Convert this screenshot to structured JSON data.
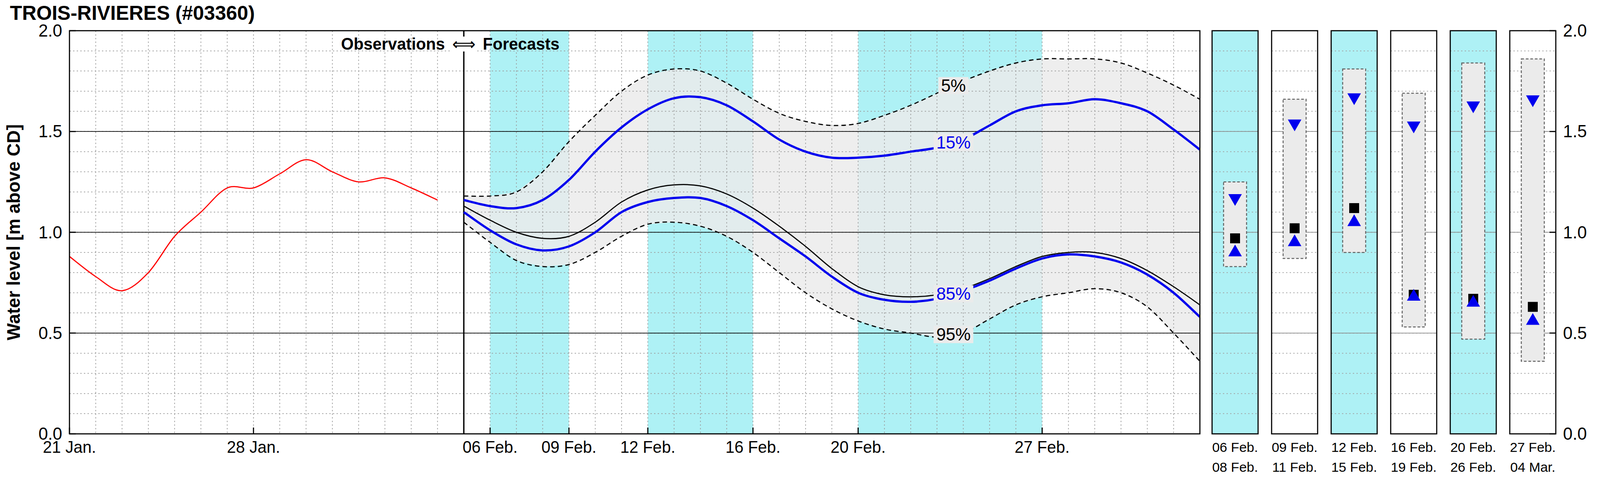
{
  "chart_data": [
    {
      "type": "line",
      "title": "TROIS-RIVIERES (#03360)",
      "y_label": "Water level [m above CD]",
      "annotations": [
        "Observations",
        "⟺",
        "Forecasts"
      ],
      "forecast_start": 15,
      "shaded_periods": [
        [
          16,
          19
        ],
        [
          22,
          26
        ],
        [
          30,
          37
        ]
      ],
      "xlim": [
        0,
        43
      ],
      "xticks": [
        {
          "value": 0,
          "label": "21 Jan."
        },
        {
          "value": 7,
          "label": "28 Jan."
        },
        {
          "value": 16,
          "label": "06 Feb."
        },
        {
          "value": 19,
          "label": "09 Feb."
        },
        {
          "value": 22,
          "label": "12 Feb."
        },
        {
          "value": 26,
          "label": "16 Feb."
        },
        {
          "value": 30,
          "label": "20 Feb."
        },
        {
          "value": 37,
          "label": "27 Feb."
        }
      ],
      "xminor": [
        0,
        1,
        2,
        3,
        4,
        5,
        6,
        7,
        8,
        9,
        10,
        11,
        12,
        13,
        14,
        15,
        16,
        17,
        18,
        19,
        20,
        21,
        22,
        23,
        24,
        25,
        26,
        27,
        28,
        29,
        30,
        31,
        32,
        33,
        34,
        35,
        36,
        37,
        38,
        39,
        40,
        41,
        42,
        43
      ],
      "ylim": [
        0,
        2
      ],
      "yticks": [
        {
          "value": 0,
          "label": "0.0"
        },
        {
          "value": 0.5,
          "label": "0.5"
        },
        {
          "value": 1,
          "label": "1.0"
        },
        {
          "value": 1.5,
          "label": "1.5"
        },
        {
          "value": 2,
          "label": "2.0"
        }
      ],
      "yminor": [
        0,
        0.1,
        0.2,
        0.3,
        0.4,
        0.5,
        0.6,
        0.7,
        0.8,
        0.9,
        1,
        1.1,
        1.2,
        1.3,
        1.4,
        1.5,
        1.6,
        1.7,
        1.8,
        1.9,
        2
      ],
      "grid": true,
      "series": [
        {
          "color": "#ff0000",
          "line_style": "solid",
          "x": [
            0,
            1,
            2,
            3,
            4,
            5,
            6,
            7,
            8,
            9,
            10,
            11,
            12,
            13,
            14
          ],
          "values": [
            0.88,
            0.78,
            0.71,
            0.8,
            0.98,
            1.1,
            1.22,
            1.22,
            1.29,
            1.36,
            1.3,
            1.25,
            1.27,
            1.22,
            1.16
          ]
        },
        {
          "name": "5%",
          "color": "#000000",
          "line_style": "dashed",
          "x": [
            15,
            16,
            17,
            18,
            19,
            20,
            21,
            22,
            23,
            24,
            25,
            26,
            27,
            28,
            29,
            30,
            31,
            32,
            33,
            34,
            35,
            36,
            37,
            38,
            39,
            40,
            41,
            42,
            43
          ],
          "values": [
            1.18,
            1.18,
            1.2,
            1.3,
            1.45,
            1.58,
            1.7,
            1.78,
            1.81,
            1.8,
            1.74,
            1.66,
            1.59,
            1.55,
            1.53,
            1.54,
            1.58,
            1.63,
            1.69,
            1.75,
            1.8,
            1.84,
            1.86,
            1.86,
            1.86,
            1.84,
            1.79,
            1.73,
            1.66
          ]
        },
        {
          "name": "15%",
          "color": "#0000ee",
          "line_style": "solid",
          "x": [
            15,
            16,
            17,
            18,
            19,
            20,
            21,
            22,
            23,
            24,
            25,
            26,
            27,
            28,
            29,
            30,
            31,
            32,
            33,
            34,
            35,
            36,
            37,
            38,
            39,
            40,
            41,
            42,
            43
          ],
          "values": [
            1.16,
            1.13,
            1.12,
            1.16,
            1.26,
            1.4,
            1.52,
            1.61,
            1.665,
            1.67,
            1.63,
            1.55,
            1.46,
            1.4,
            1.37,
            1.37,
            1.38,
            1.4,
            1.42,
            1.46,
            1.53,
            1.6,
            1.63,
            1.64,
            1.66,
            1.64,
            1.6,
            1.51,
            1.41
          ]
        },
        {
          "color": "#000000",
          "line_style": "solid",
          "x": [
            15,
            16,
            17,
            18,
            19,
            20,
            21,
            22,
            23,
            24,
            25,
            26,
            27,
            28,
            29,
            30,
            31,
            32,
            33,
            34,
            35,
            36,
            37,
            38,
            39,
            40,
            41,
            42,
            43
          ],
          "values": [
            1.13,
            1.06,
            1.0,
            0.97,
            0.98,
            1.05,
            1.15,
            1.21,
            1.235,
            1.23,
            1.19,
            1.12,
            1.03,
            0.93,
            0.82,
            0.73,
            0.69,
            0.68,
            0.69,
            0.72,
            0.77,
            0.83,
            0.88,
            0.9,
            0.9,
            0.87,
            0.81,
            0.73,
            0.64
          ]
        },
        {
          "name": "85%",
          "color": "#0000ee",
          "line_style": "solid",
          "x": [
            15,
            16,
            17,
            18,
            19,
            20,
            21,
            22,
            23,
            24,
            25,
            26,
            27,
            28,
            29,
            30,
            31,
            32,
            33,
            34,
            35,
            36,
            37,
            38,
            39,
            40,
            41,
            42,
            43
          ],
          "values": [
            1.1,
            1.01,
            0.94,
            0.91,
            0.93,
            1.0,
            1.1,
            1.15,
            1.17,
            1.17,
            1.13,
            1.06,
            0.97,
            0.88,
            0.78,
            0.7,
            0.665,
            0.655,
            0.67,
            0.71,
            0.76,
            0.82,
            0.87,
            0.89,
            0.88,
            0.85,
            0.79,
            0.7,
            0.58
          ]
        },
        {
          "name": "95%",
          "color": "#000000",
          "line_style": "dashed",
          "x": [
            15,
            16,
            17,
            18,
            19,
            20,
            21,
            22,
            23,
            24,
            25,
            26,
            27,
            28,
            29,
            30,
            31,
            32,
            33,
            34,
            35,
            36,
            37,
            38,
            39,
            40,
            41,
            42,
            43
          ],
          "values": [
            1.05,
            0.95,
            0.86,
            0.83,
            0.84,
            0.9,
            0.98,
            1.04,
            1.05,
            1.03,
            0.98,
            0.9,
            0.8,
            0.7,
            0.62,
            0.56,
            0.52,
            0.5,
            0.48,
            0.5,
            0.57,
            0.64,
            0.68,
            0.7,
            0.72,
            0.7,
            0.63,
            0.5,
            0.36
          ]
        }
      ]
    },
    {
      "type": "range",
      "categories": [
        "06 Feb.",
        "09 Feb.",
        "12 Feb.",
        "16 Feb.",
        "20 Feb.",
        "27 Feb."
      ],
      "categories_end": [
        "08 Feb.",
        "11 Feb.",
        "15 Feb.",
        "19 Feb.",
        "26 Feb.",
        "04 Mar."
      ],
      "highlighted": [
        true,
        false,
        true,
        false,
        true,
        false
      ],
      "ylim": [
        0,
        2
      ],
      "yticks": [
        {
          "value": 0,
          "label": "0.0"
        },
        {
          "value": 0.5,
          "label": "0.5"
        },
        {
          "value": 1,
          "label": "1.0"
        },
        {
          "value": 1.5,
          "label": "1.5"
        },
        {
          "value": 2,
          "label": "2.0"
        }
      ],
      "yminor": [
        0,
        0.1,
        0.2,
        0.3,
        0.4,
        0.5,
        0.6,
        0.7,
        0.8,
        0.9,
        1,
        1.1,
        1.2,
        1.3,
        1.4,
        1.5,
        1.6,
        1.7,
        1.8,
        1.9,
        2
      ],
      "grid": true,
      "tick_labels": "y",
      "series": [
        {
          "type": "range",
          "line_style": "dashed",
          "color": "#555555",
          "low": [
            0.83,
            0.87,
            0.9,
            0.53,
            0.47,
            0.36
          ],
          "high": [
            1.25,
            1.66,
            1.81,
            1.69,
            1.84,
            1.86
          ]
        },
        {
          "type": "scatter",
          "marker": "square",
          "color": "#000000",
          "values": [
            0.97,
            1.02,
            1.12,
            0.69,
            0.67,
            0.63
          ]
        },
        {
          "type": "scatter",
          "marker": "triangle-down",
          "color": "#0000ee",
          "values": [
            1.16,
            1.53,
            1.66,
            1.52,
            1.62,
            1.65
          ]
        },
        {
          "type": "scatter",
          "marker": "triangle-up",
          "color": "#0000ee",
          "values": [
            0.91,
            0.96,
            1.06,
            0.69,
            0.66,
            0.57
          ]
        }
      ]
    }
  ]
}
